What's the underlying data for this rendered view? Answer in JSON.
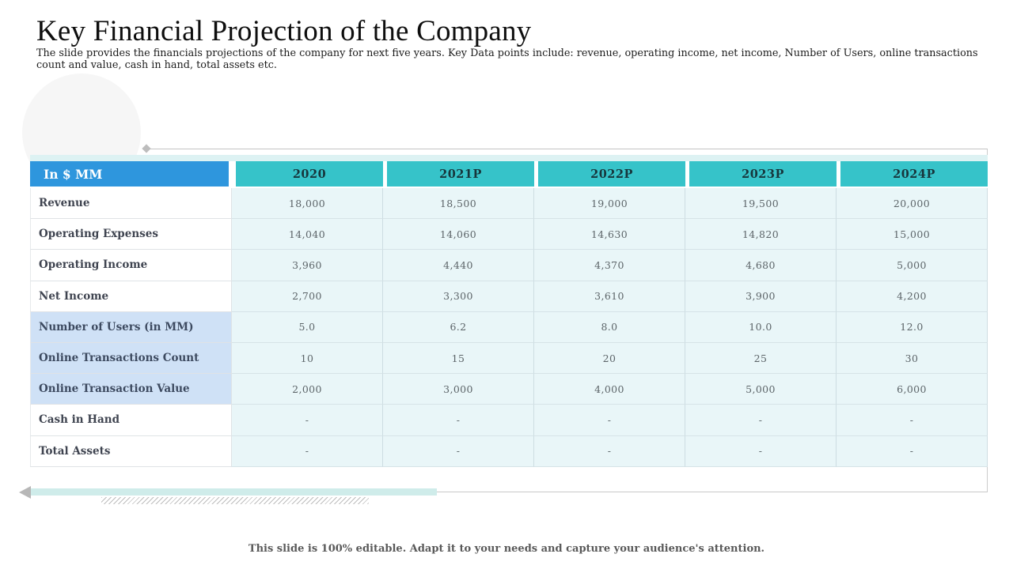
{
  "slide": {
    "title": "Key Financial Projection of the Company",
    "subtitle": "The slide provides the financials projections of the company for next five years. Key Data points include: revenue, operating income, net income, Number of Users, online transactions count and value, cash in hand, total assets etc.",
    "footer_note": "This slide is 100% editable. Adapt it to your needs and capture your audience's attention."
  },
  "table": {
    "header": {
      "corner_label": "In $ MM",
      "columns": [
        "2020",
        "2021P",
        "2022P",
        "2023P",
        "2024P"
      ]
    },
    "rows": [
      {
        "label": "Revenue",
        "highlighted": false,
        "values": [
          "18,000",
          "18,500",
          "19,000",
          "19,500",
          "20,000"
        ]
      },
      {
        "label": "Operating Expenses",
        "highlighted": false,
        "values": [
          "14,040",
          "14,060",
          "14,630",
          "14,820",
          "15,000"
        ]
      },
      {
        "label": "Operating Income",
        "highlighted": false,
        "values": [
          "3,960",
          "4,440",
          "4,370",
          "4,680",
          "5,000"
        ]
      },
      {
        "label": "Net Income",
        "highlighted": false,
        "values": [
          "2,700",
          "3,300",
          "3,610",
          "3,900",
          "4,200"
        ]
      },
      {
        "label": "Number of Users (in MM)",
        "highlighted": true,
        "values": [
          "5.0",
          "6.2",
          "8.0",
          "10.0",
          "12.0"
        ]
      },
      {
        "label": "Online Transactions Count",
        "highlighted": true,
        "values": [
          "10",
          "15",
          "20",
          "25",
          "30"
        ]
      },
      {
        "label": "Online Transaction Value",
        "highlighted": true,
        "values": [
          "2,000",
          "3,000",
          "4,000",
          "5,000",
          "6,000"
        ]
      },
      {
        "label": "Cash in Hand",
        "highlighted": false,
        "values": [
          "-",
          "-",
          "-",
          "-",
          "-"
        ]
      },
      {
        "label": "Total Assets",
        "highlighted": false,
        "values": [
          "-",
          "-",
          "-",
          "-",
          "-"
        ]
      }
    ]
  },
  "colors": {
    "corner_bg": "#2E96DD",
    "year_bg": "#36C3C9",
    "year_text": "#17363C",
    "cell_bg": "#E9F6F8",
    "highlight_bg": "#CFE1F6",
    "label_text": "#3F4450",
    "value_text": "#5C6468",
    "accent_bar": "#CFECEA"
  }
}
